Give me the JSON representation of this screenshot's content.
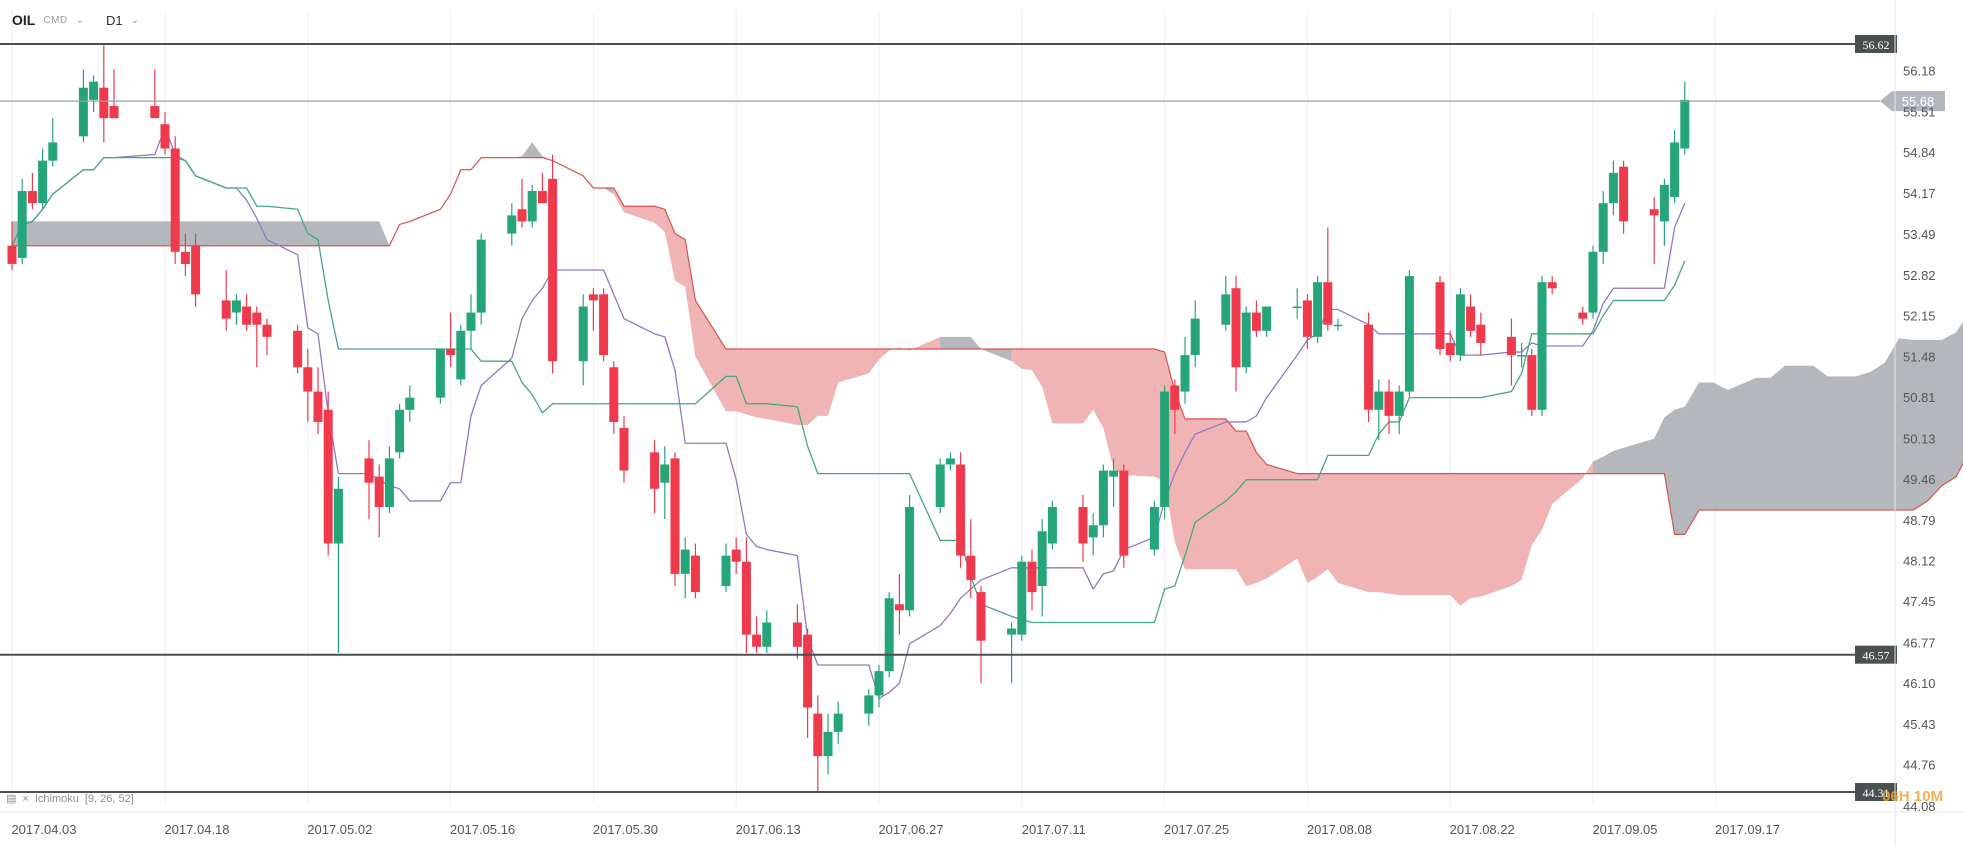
{
  "toolbar": {
    "symbol": "OIL",
    "market": "CMD",
    "timeframe": "D1"
  },
  "indicator": {
    "name": "Ichimoku",
    "params": "[9, 26, 52]"
  },
  "timer": "06H 10M",
  "colors": {
    "up": "#27a57a",
    "down": "#ef3a4e",
    "chikou": "#3a44a0",
    "tenkan": "#8e7ac4",
    "kijun": "#46a881",
    "cloud_bear": "#eea7a7",
    "cloud_bull": "#a7aaaf",
    "span_b": "#d6534f"
  },
  "chart_data": {
    "type": "candlestick",
    "ylim": [
      44.08,
      56.85
    ],
    "price_ticks": [
      "56.18",
      "55.51",
      "54.84",
      "54.17",
      "53.49",
      "52.82",
      "52.15",
      "51.48",
      "50.81",
      "50.13",
      "49.46",
      "48.79",
      "48.12",
      "47.45",
      "46.77",
      "46.10",
      "45.43",
      "44.76",
      "44.08"
    ],
    "date_ticks": [
      "2017.04.03",
      "2017.04.18",
      "2017.05.02",
      "2017.05.16",
      "2017.05.30",
      "2017.06.13",
      "2017.06.27",
      "2017.07.11",
      "2017.07.25",
      "2017.08.08",
      "2017.08.22",
      "2017.09.05",
      "2017.09.17"
    ],
    "horizontal_levels": [
      {
        "value": 56.62,
        "label": "56.62"
      },
      {
        "value": 46.57,
        "label": "46.57"
      },
      {
        "value": 44.31,
        "label": "44.31"
      }
    ],
    "current_price": {
      "value": 55.68,
      "label": "55.68"
    },
    "candles": [
      {
        "date": "2017.04.03",
        "o": 53.3,
        "h": 53.7,
        "l": 52.9,
        "c": 53.0
      },
      {
        "date": "2017.04.04",
        "o": 53.1,
        "h": 54.4,
        "l": 53.0,
        "c": 54.2
      },
      {
        "date": "2017.04.05",
        "o": 54.2,
        "h": 54.5,
        "l": 53.9,
        "c": 54.0
      },
      {
        "date": "2017.04.06",
        "o": 54.0,
        "h": 54.9,
        "l": 53.9,
        "c": 54.7
      },
      {
        "date": "2017.04.07",
        "o": 54.7,
        "h": 55.4,
        "l": 54.6,
        "c": 55.0
      },
      {
        "date": "2017.04.10",
        "o": 55.1,
        "h": 56.2,
        "l": 55.0,
        "c": 55.9
      },
      {
        "date": "2017.04.11",
        "o": 55.7,
        "h": 56.1,
        "l": 55.5,
        "c": 56.0
      },
      {
        "date": "2017.04.12",
        "o": 55.9,
        "h": 56.6,
        "l": 55.0,
        "c": 55.4
      },
      {
        "date": "2017.04.13",
        "o": 55.6,
        "h": 56.2,
        "l": 55.4,
        "c": 55.4
      },
      {
        "date": "2017.04.17",
        "o": 55.6,
        "h": 56.2,
        "l": 55.4,
        "c": 55.4
      },
      {
        "date": "2017.04.18",
        "o": 55.3,
        "h": 55.5,
        "l": 54.8,
        "c": 54.9
      },
      {
        "date": "2017.04.19",
        "o": 54.9,
        "h": 55.1,
        "l": 53.0,
        "c": 53.2
      },
      {
        "date": "2017.04.20",
        "o": 53.2,
        "h": 53.5,
        "l": 52.8,
        "c": 53.0
      },
      {
        "date": "2017.04.21",
        "o": 53.3,
        "h": 53.5,
        "l": 52.3,
        "c": 52.5
      },
      {
        "date": "2017.04.24",
        "o": 52.4,
        "h": 52.9,
        "l": 51.9,
        "c": 52.1
      },
      {
        "date": "2017.04.25",
        "o": 52.2,
        "h": 52.5,
        "l": 52.0,
        "c": 52.4
      },
      {
        "date": "2017.04.26",
        "o": 52.3,
        "h": 52.5,
        "l": 51.9,
        "c": 52.0
      },
      {
        "date": "2017.04.27",
        "o": 52.2,
        "h": 52.3,
        "l": 51.3,
        "c": 52.0
      },
      {
        "date": "2017.04.28",
        "o": 52.0,
        "h": 52.1,
        "l": 51.5,
        "c": 51.8
      },
      {
        "date": "2017.05.01",
        "o": 51.9,
        "h": 52.0,
        "l": 51.2,
        "c": 51.3
      },
      {
        "date": "2017.05.02",
        "o": 51.3,
        "h": 51.6,
        "l": 50.4,
        "c": 50.9
      },
      {
        "date": "2017.05.03",
        "o": 50.9,
        "h": 51.3,
        "l": 50.2,
        "c": 50.4
      },
      {
        "date": "2017.05.04",
        "o": 50.6,
        "h": 50.9,
        "l": 48.2,
        "c": 48.4
      },
      {
        "date": "2017.05.05",
        "o": 48.4,
        "h": 49.5,
        "l": 46.6,
        "c": 49.3
      },
      {
        "date": "2017.05.08",
        "o": 49.8,
        "h": 50.1,
        "l": 48.8,
        "c": 49.4
      },
      {
        "date": "2017.05.09",
        "o": 49.5,
        "h": 49.7,
        "l": 48.5,
        "c": 49.0
      },
      {
        "date": "2017.05.10",
        "o": 49.0,
        "h": 50.0,
        "l": 48.9,
        "c": 49.8
      },
      {
        "date": "2017.05.11",
        "o": 49.9,
        "h": 50.7,
        "l": 49.8,
        "c": 50.6
      },
      {
        "date": "2017.05.12",
        "o": 50.6,
        "h": 51.0,
        "l": 50.4,
        "c": 50.8
      },
      {
        "date": "2017.05.15",
        "o": 50.8,
        "h": 51.6,
        "l": 50.7,
        "c": 51.6
      },
      {
        "date": "2017.05.16",
        "o": 51.6,
        "h": 52.2,
        "l": 51.3,
        "c": 51.5
      },
      {
        "date": "2017.05.17",
        "o": 51.1,
        "h": 52.0,
        "l": 51.0,
        "c": 51.9
      },
      {
        "date": "2017.05.18",
        "o": 51.9,
        "h": 52.5,
        "l": 51.6,
        "c": 52.2
      },
      {
        "date": "2017.05.19",
        "o": 52.2,
        "h": 53.5,
        "l": 52.0,
        "c": 53.4
      },
      {
        "date": "2017.05.22",
        "o": 53.5,
        "h": 54.0,
        "l": 53.3,
        "c": 53.8
      },
      {
        "date": "2017.05.23",
        "o": 53.9,
        "h": 54.4,
        "l": 53.6,
        "c": 53.7
      },
      {
        "date": "2017.05.24",
        "o": 53.7,
        "h": 54.3,
        "l": 53.6,
        "c": 54.2
      },
      {
        "date": "2017.05.25",
        "o": 54.2,
        "h": 54.5,
        "l": 54.0,
        "c": 54.0
      },
      {
        "date": "2017.05.26",
        "o": 54.4,
        "h": 54.8,
        "l": 51.2,
        "c": 51.4
      },
      {
        "date": "2017.05.29",
        "o": 51.4,
        "h": 52.5,
        "l": 51.0,
        "c": 52.3
      },
      {
        "date": "2017.05.30",
        "o": 52.5,
        "h": 52.6,
        "l": 51.9,
        "c": 52.4
      },
      {
        "date": "2017.05.31",
        "o": 52.5,
        "h": 52.6,
        "l": 51.4,
        "c": 51.5
      },
      {
        "date": "2017.06.01",
        "o": 51.3,
        "h": 51.4,
        "l": 50.2,
        "c": 50.4
      },
      {
        "date": "2017.06.02",
        "o": 50.3,
        "h": 50.5,
        "l": 49.4,
        "c": 49.6
      },
      {
        "date": "2017.06.05",
        "o": 49.9,
        "h": 50.1,
        "l": 48.9,
        "c": 49.3
      },
      {
        "date": "2017.06.06",
        "o": 49.4,
        "h": 50.0,
        "l": 48.8,
        "c": 49.7
      },
      {
        "date": "2017.06.07",
        "o": 49.8,
        "h": 49.9,
        "l": 47.7,
        "c": 47.9
      },
      {
        "date": "2017.06.08",
        "o": 47.9,
        "h": 48.5,
        "l": 47.5,
        "c": 48.3
      },
      {
        "date": "2017.06.09",
        "o": 48.2,
        "h": 48.4,
        "l": 47.5,
        "c": 47.6
      },
      {
        "date": "2017.06.12",
        "o": 47.7,
        "h": 48.4,
        "l": 47.6,
        "c": 48.2
      },
      {
        "date": "2017.06.13",
        "o": 48.3,
        "h": 48.5,
        "l": 47.9,
        "c": 48.1
      },
      {
        "date": "2017.06.14",
        "o": 48.1,
        "h": 48.5,
        "l": 46.6,
        "c": 46.9
      },
      {
        "date": "2017.06.15",
        "o": 46.9,
        "h": 47.2,
        "l": 46.6,
        "c": 46.7
      },
      {
        "date": "2017.06.16",
        "o": 46.7,
        "h": 47.3,
        "l": 46.6,
        "c": 47.1
      },
      {
        "date": "2017.06.19",
        "o": 47.1,
        "h": 47.4,
        "l": 46.5,
        "c": 46.7
      },
      {
        "date": "2017.06.20",
        "o": 46.9,
        "h": 47.0,
        "l": 45.2,
        "c": 45.7
      },
      {
        "date": "2017.06.21",
        "o": 45.6,
        "h": 45.9,
        "l": 44.3,
        "c": 44.9
      },
      {
        "date": "2017.06.22",
        "o": 44.9,
        "h": 45.6,
        "l": 44.6,
        "c": 45.3
      },
      {
        "date": "2017.06.23",
        "o": 45.3,
        "h": 45.8,
        "l": 45.1,
        "c": 45.6
      },
      {
        "date": "2017.06.26",
        "o": 45.6,
        "h": 46.0,
        "l": 45.4,
        "c": 45.9
      },
      {
        "date": "2017.06.27",
        "o": 45.9,
        "h": 46.4,
        "l": 45.7,
        "c": 46.3
      },
      {
        "date": "2017.06.28",
        "o": 46.3,
        "h": 47.6,
        "l": 46.2,
        "c": 47.5
      },
      {
        "date": "2017.06.29",
        "o": 47.4,
        "h": 47.9,
        "l": 46.9,
        "c": 47.3
      },
      {
        "date": "2017.06.30",
        "o": 47.3,
        "h": 49.2,
        "l": 47.2,
        "c": 49.0
      },
      {
        "date": "2017.07.03",
        "o": 49.0,
        "h": 49.8,
        "l": 48.9,
        "c": 49.7
      },
      {
        "date": "2017.07.04",
        "o": 49.7,
        "h": 49.9,
        "l": 49.6,
        "c": 49.8
      },
      {
        "date": "2017.07.05",
        "o": 49.7,
        "h": 49.9,
        "l": 48.0,
        "c": 48.2
      },
      {
        "date": "2017.07.06",
        "o": 48.2,
        "h": 48.8,
        "l": 47.5,
        "c": 47.8
      },
      {
        "date": "2017.07.07",
        "o": 47.6,
        "h": 47.7,
        "l": 46.1,
        "c": 46.8
      },
      {
        "date": "2017.07.10",
        "o": 46.9,
        "h": 47.1,
        "l": 46.1,
        "c": 47.0
      },
      {
        "date": "2017.07.11",
        "o": 46.9,
        "h": 48.2,
        "l": 46.8,
        "c": 48.1
      },
      {
        "date": "2017.07.12",
        "o": 48.1,
        "h": 48.3,
        "l": 47.3,
        "c": 47.6
      },
      {
        "date": "2017.07.13",
        "o": 47.7,
        "h": 48.8,
        "l": 47.2,
        "c": 48.6
      },
      {
        "date": "2017.07.14",
        "o": 48.4,
        "h": 49.1,
        "l": 48.3,
        "c": 49.0
      },
      {
        "date": "2017.07.17",
        "o": 49.0,
        "h": 49.2,
        "l": 48.1,
        "c": 48.4
      },
      {
        "date": "2017.07.18",
        "o": 48.5,
        "h": 48.9,
        "l": 48.2,
        "c": 48.7
      },
      {
        "date": "2017.07.19",
        "o": 48.7,
        "h": 49.7,
        "l": 48.5,
        "c": 49.6
      },
      {
        "date": "2017.07.20",
        "o": 49.5,
        "h": 49.8,
        "l": 49.0,
        "c": 49.6
      },
      {
        "date": "2017.07.21",
        "o": 49.6,
        "h": 49.7,
        "l": 48.0,
        "c": 48.2
      },
      {
        "date": "2017.07.24",
        "o": 48.3,
        "h": 49.1,
        "l": 48.2,
        "c": 49.0
      },
      {
        "date": "2017.07.25",
        "o": 49.0,
        "h": 51.0,
        "l": 48.8,
        "c": 50.9
      },
      {
        "date": "2017.07.26",
        "o": 51.0,
        "h": 51.1,
        "l": 50.2,
        "c": 50.6
      },
      {
        "date": "2017.07.27",
        "o": 50.9,
        "h": 51.8,
        "l": 50.7,
        "c": 51.5
      },
      {
        "date": "2017.07.28",
        "o": 51.5,
        "h": 52.4,
        "l": 51.3,
        "c": 52.1
      },
      {
        "date": "2017.07.31",
        "o": 52.0,
        "h": 52.8,
        "l": 51.9,
        "c": 52.5
      },
      {
        "date": "2017.08.01",
        "o": 52.6,
        "h": 52.8,
        "l": 50.9,
        "c": 51.3
      },
      {
        "date": "2017.08.02",
        "o": 51.3,
        "h": 52.3,
        "l": 51.2,
        "c": 52.2
      },
      {
        "date": "2017.08.03",
        "o": 52.2,
        "h": 52.4,
        "l": 51.8,
        "c": 51.9
      },
      {
        "date": "2017.08.04",
        "o": 51.9,
        "h": 52.3,
        "l": 51.8,
        "c": 52.3
      },
      {
        "date": "2017.08.07",
        "o": 52.3,
        "h": 52.6,
        "l": 52.1,
        "c": 52.3
      },
      {
        "date": "2017.08.08",
        "o": 52.4,
        "h": 52.5,
        "l": 51.6,
        "c": 51.8
      },
      {
        "date": "2017.08.09",
        "o": 51.8,
        "h": 52.8,
        "l": 51.7,
        "c": 52.7
      },
      {
        "date": "2017.08.10",
        "o": 52.7,
        "h": 53.6,
        "l": 51.9,
        "c": 52.0
      },
      {
        "date": "2017.08.11",
        "o": 52.0,
        "h": 52.1,
        "l": 51.9,
        "c": 52.0
      },
      {
        "date": "2017.08.14",
        "o": 52.0,
        "h": 52.2,
        "l": 50.4,
        "c": 50.6
      },
      {
        "date": "2017.08.15",
        "o": 50.6,
        "h": 51.1,
        "l": 50.1,
        "c": 50.9
      },
      {
        "date": "2017.08.16",
        "o": 50.9,
        "h": 51.1,
        "l": 50.2,
        "c": 50.5
      },
      {
        "date": "2017.08.17",
        "o": 50.5,
        "h": 51.0,
        "l": 50.2,
        "c": 50.9
      },
      {
        "date": "2017.08.18",
        "o": 50.9,
        "h": 52.9,
        "l": 50.8,
        "c": 52.8
      },
      {
        "date": "2017.08.21",
        "o": 52.7,
        "h": 52.8,
        "l": 51.5,
        "c": 51.6
      },
      {
        "date": "2017.08.22",
        "o": 51.7,
        "h": 51.9,
        "l": 51.4,
        "c": 51.5
      },
      {
        "date": "2017.08.23",
        "o": 51.5,
        "h": 52.6,
        "l": 51.4,
        "c": 52.5
      },
      {
        "date": "2017.08.24",
        "o": 52.3,
        "h": 52.5,
        "l": 51.8,
        "c": 51.9
      },
      {
        "date": "2017.08.25",
        "o": 52.0,
        "h": 52.2,
        "l": 51.5,
        "c": 51.7
      },
      {
        "date": "2017.08.28",
        "o": 51.8,
        "h": 52.1,
        "l": 51.0,
        "c": 51.5
      },
      {
        "date": "2017.08.29",
        "o": 51.5,
        "h": 51.7,
        "l": 51.3,
        "c": 51.5
      },
      {
        "date": "2017.08.30",
        "o": 51.5,
        "h": 51.6,
        "l": 50.5,
        "c": 50.6
      },
      {
        "date": "2017.08.31",
        "o": 50.6,
        "h": 52.8,
        "l": 50.5,
        "c": 52.7
      },
      {
        "date": "2017.09.01",
        "o": 52.7,
        "h": 52.8,
        "l": 52.5,
        "c": 52.6
      },
      {
        "date": "2017.09.04",
        "o": 52.2,
        "h": 52.3,
        "l": 52.0,
        "c": 52.1
      },
      {
        "date": "2017.09.05",
        "o": 52.2,
        "h": 53.3,
        "l": 52.1,
        "c": 53.2
      },
      {
        "date": "2017.09.06",
        "o": 53.2,
        "h": 54.2,
        "l": 53.0,
        "c": 54.0
      },
      {
        "date": "2017.09.07",
        "o": 54.0,
        "h": 54.7,
        "l": 53.8,
        "c": 54.5
      },
      {
        "date": "2017.09.08",
        "o": 54.6,
        "h": 54.7,
        "l": 53.5,
        "c": 53.7
      },
      {
        "date": "2017.09.11",
        "o": 53.9,
        "h": 54.1,
        "l": 53.0,
        "c": 53.8
      },
      {
        "date": "2017.09.12",
        "o": 53.7,
        "h": 54.4,
        "l": 53.3,
        "c": 54.3
      },
      {
        "date": "2017.09.13",
        "o": 54.1,
        "h": 55.2,
        "l": 54.0,
        "c": 55.0
      },
      {
        "date": "2017.09.14",
        "o": 54.9,
        "h": 56.0,
        "l": 54.8,
        "c": 55.7
      }
    ]
  }
}
